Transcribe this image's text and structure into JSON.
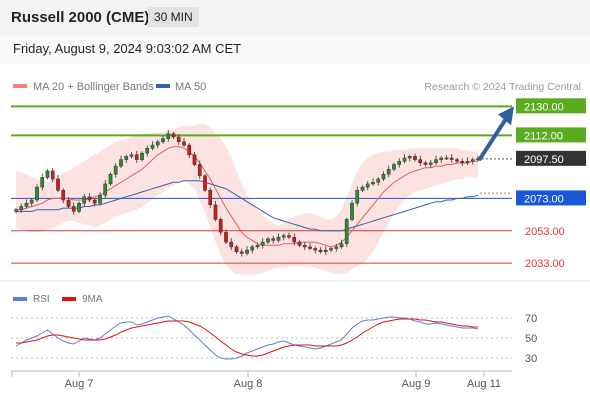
{
  "header": {
    "instrument": "Russell 2000 (CME)",
    "timeframe": "30 MIN",
    "datetime": "Friday, August 9, 2024 9:03:02 AM CET"
  },
  "colors": {
    "bull": "#2e8b2e",
    "bear": "#d11a1a",
    "candle_outline": "#333333",
    "ma20": "#e06060",
    "bollinger_fill": "#fde0e0",
    "ma50": "#3a5fa8",
    "resistance": "#5aab1e",
    "support": "#d33a3a",
    "pivot": "#1a56d6",
    "current": "#333333",
    "arrow": "#2f5e9e",
    "rsi": "#5b7fd6",
    "rsi_ma": "#e01010"
  },
  "chart_data": [
    {
      "type": "candlestick",
      "legend": [
        {
          "name": "MA 20 + Bollinger Bands",
          "color": "#f08080"
        },
        {
          "name": "MA 50",
          "color": "#3a5fa8"
        }
      ],
      "credit": "Research © 2024 Trading Central",
      "x_ticks": [
        "Aug 7",
        "Aug 8",
        "Aug 9",
        "Aug 11"
      ],
      "ylim": [
        2025,
        2137
      ],
      "levels": [
        {
          "value": 2130.0,
          "label": "2130.00",
          "kind": "resistance"
        },
        {
          "value": 2112.0,
          "label": "2112.00",
          "kind": "resistance"
        },
        {
          "value": 2097.5,
          "label": "2097.50",
          "kind": "current"
        },
        {
          "value": 2073.0,
          "label": "2073.00",
          "kind": "pivot"
        },
        {
          "value": 2053.0,
          "label": "2053.00",
          "kind": "support"
        },
        {
          "value": 2033.0,
          "label": "2033.00",
          "kind": "support"
        }
      ],
      "projection": {
        "from": 2097.5,
        "to": 2130.0,
        "direction": "up"
      },
      "close": [
        2066,
        2068,
        2070,
        2072,
        2080,
        2086,
        2090,
        2085,
        2078,
        2072,
        2068,
        2065,
        2070,
        2074,
        2072,
        2070,
        2075,
        2082,
        2088,
        2093,
        2097,
        2099,
        2100,
        2097,
        2101,
        2104,
        2106,
        2108,
        2110,
        2113,
        2111,
        2108,
        2106,
        2100,
        2094,
        2087,
        2078,
        2069,
        2060,
        2052,
        2046,
        2043,
        2040,
        2039,
        2041,
        2043,
        2044,
        2046,
        2048,
        2047,
        2049,
        2050,
        2049,
        2046,
        2044,
        2043,
        2042,
        2041,
        2040,
        2041,
        2042,
        2043,
        2045,
        2060,
        2070,
        2078,
        2080,
        2082,
        2083,
        2085,
        2088,
        2091,
        2094,
        2096,
        2098,
        2099,
        2097,
        2095,
        2094,
        2095,
        2097,
        2098,
        2098,
        2097,
        2096,
        2095,
        2096,
        2097,
        2097.5
      ],
      "ma20": [
        2066,
        2066,
        2067,
        2068,
        2069,
        2070,
        2072,
        2073,
        2073,
        2073,
        2073,
        2072,
        2072,
        2072,
        2073,
        2074,
        2075,
        2077,
        2079,
        2081,
        2083,
        2085,
        2087,
        2089,
        2091,
        2094,
        2097,
        2100,
        2102,
        2104,
        2105,
        2105,
        2104,
        2102,
        2099,
        2095,
        2090,
        2085,
        2079,
        2073,
        2067,
        2062,
        2057,
        2052,
        2049,
        2047,
        2045,
        2044,
        2044,
        2044,
        2044,
        2045,
        2045,
        2045,
        2046,
        2046,
        2046,
        2046,
        2045,
        2044,
        2043,
        2044,
        2046,
        2049,
        2053,
        2057,
        2061,
        2065,
        2069,
        2073,
        2077,
        2080,
        2083,
        2085,
        2087,
        2089,
        2090,
        2091,
        2092,
        2092,
        2093,
        2093,
        2094,
        2094,
        2095,
        2095,
        2095,
        2096,
        2096
      ],
      "bb_upper": [
        2090,
        2089,
        2088,
        2086,
        2085,
        2084,
        2083,
        2085,
        2087,
        2089,
        2090,
        2092,
        2094,
        2096,
        2098,
        2100,
        2102,
        2104,
        2106,
        2108,
        2109,
        2110,
        2111,
        2112,
        2113,
        2113,
        2114,
        2114,
        2114,
        2115,
        2116,
        2117,
        2118,
        2118,
        2118,
        2119,
        2119,
        2117,
        2114,
        2110,
        2105,
        2098,
        2090,
        2082,
        2075,
        2070,
        2066,
        2063,
        2060,
        2058,
        2056,
        2058,
        2060,
        2062,
        2063,
        2064,
        2064,
        2063,
        2062,
        2060,
        2060,
        2062,
        2066,
        2074,
        2082,
        2090,
        2095,
        2098,
        2100,
        2101,
        2102,
        2102,
        2103,
        2103,
        2103,
        2104,
        2104,
        2104,
        2104,
        2104,
        2104,
        2104,
        2104,
        2104,
        2104,
        2103,
        2103,
        2102,
        2102
      ],
      "bb_lower": [
        2055,
        2054,
        2053,
        2052,
        2052,
        2053,
        2054,
        2055,
        2056,
        2058,
        2059,
        2059,
        2058,
        2057,
        2056,
        2055,
        2056,
        2058,
        2060,
        2062,
        2063,
        2064,
        2065,
        2066,
        2068,
        2070,
        2073,
        2075,
        2077,
        2079,
        2081,
        2083,
        2084,
        2082,
        2079,
        2072,
        2064,
        2055,
        2046,
        2038,
        2032,
        2028,
        2026,
        2026,
        2026,
        2026,
        2026,
        2027,
        2028,
        2029,
        2030,
        2030,
        2031,
        2031,
        2031,
        2031,
        2031,
        2030,
        2029,
        2028,
        2027,
        2026,
        2026,
        2027,
        2029,
        2031,
        2033,
        2036,
        2040,
        2046,
        2052,
        2058,
        2064,
        2068,
        2072,
        2075,
        2077,
        2078,
        2079,
        2080,
        2081,
        2082,
        2083,
        2084,
        2085,
        2085,
        2086,
        2086,
        2086
      ],
      "ma50": [
        2065,
        2065,
        2065,
        2065,
        2066,
        2066,
        2066,
        2066,
        2066,
        2067,
        2067,
        2067,
        2067,
        2068,
        2068,
        2069,
        2069,
        2070,
        2071,
        2072,
        2073,
        2074,
        2075,
        2076,
        2077,
        2078,
        2079,
        2080,
        2081,
        2082,
        2083,
        2083,
        2084,
        2084,
        2084,
        2084,
        2083,
        2082,
        2081,
        2080,
        2079,
        2077,
        2075,
        2073,
        2071,
        2069,
        2067,
        2065,
        2063,
        2061,
        2060,
        2059,
        2058,
        2057,
        2056,
        2055,
        2054,
        2054,
        2053,
        2053,
        2053,
        2053,
        2053,
        2054,
        2055,
        2056,
        2057,
        2058,
        2059,
        2060,
        2061,
        2062,
        2063,
        2064,
        2065,
        2066,
        2067,
        2068,
        2069,
        2070,
        2071,
        2071,
        2072,
        2072,
        2073,
        2073,
        2074,
        2074,
        2075
      ]
    },
    {
      "type": "line",
      "legend": [
        {
          "name": "RSI",
          "color": "#5b7fd6"
        },
        {
          "name": "9MA",
          "color": "#e01010"
        }
      ],
      "ylim": [
        20,
        80
      ],
      "y_ticks": [
        70,
        50,
        30
      ],
      "rsi": [
        42,
        45,
        48,
        50,
        52,
        55,
        58,
        54,
        50,
        47,
        45,
        44,
        47,
        50,
        49,
        48,
        50,
        54,
        58,
        62,
        65,
        66,
        66,
        63,
        64,
        66,
        68,
        70,
        71,
        72,
        69,
        66,
        63,
        58,
        53,
        48,
        43,
        38,
        33,
        30,
        29,
        29,
        30,
        32,
        35,
        37,
        39,
        41,
        43,
        44,
        46,
        47,
        45,
        43,
        42,
        41,
        40,
        39,
        40,
        42,
        44,
        46,
        48,
        54,
        60,
        64,
        67,
        68,
        68,
        69,
        70,
        71,
        71,
        70,
        70,
        69,
        67,
        66,
        64,
        64,
        65,
        64,
        63,
        62,
        61,
        60,
        60,
        60,
        59
      ],
      "rsi_ma": [
        45,
        45,
        46,
        47,
        48,
        50,
        52,
        53,
        53,
        52,
        51,
        50,
        49,
        48,
        48,
        48,
        48,
        49,
        51,
        53,
        56,
        58,
        60,
        61,
        62,
        63,
        64,
        65,
        66,
        67,
        67,
        67,
        67,
        66,
        64,
        62,
        59,
        55,
        51,
        47,
        43,
        39,
        36,
        34,
        33,
        32,
        32,
        33,
        35,
        37,
        39,
        41,
        42,
        43,
        43,
        43,
        43,
        42,
        42,
        42,
        42,
        42,
        43,
        45,
        48,
        51,
        55,
        58,
        61,
        64,
        66,
        67,
        68,
        69,
        69,
        69,
        69,
        68,
        68,
        67,
        66,
        66,
        65,
        64,
        63,
        62,
        62,
        61,
        61
      ]
    }
  ]
}
